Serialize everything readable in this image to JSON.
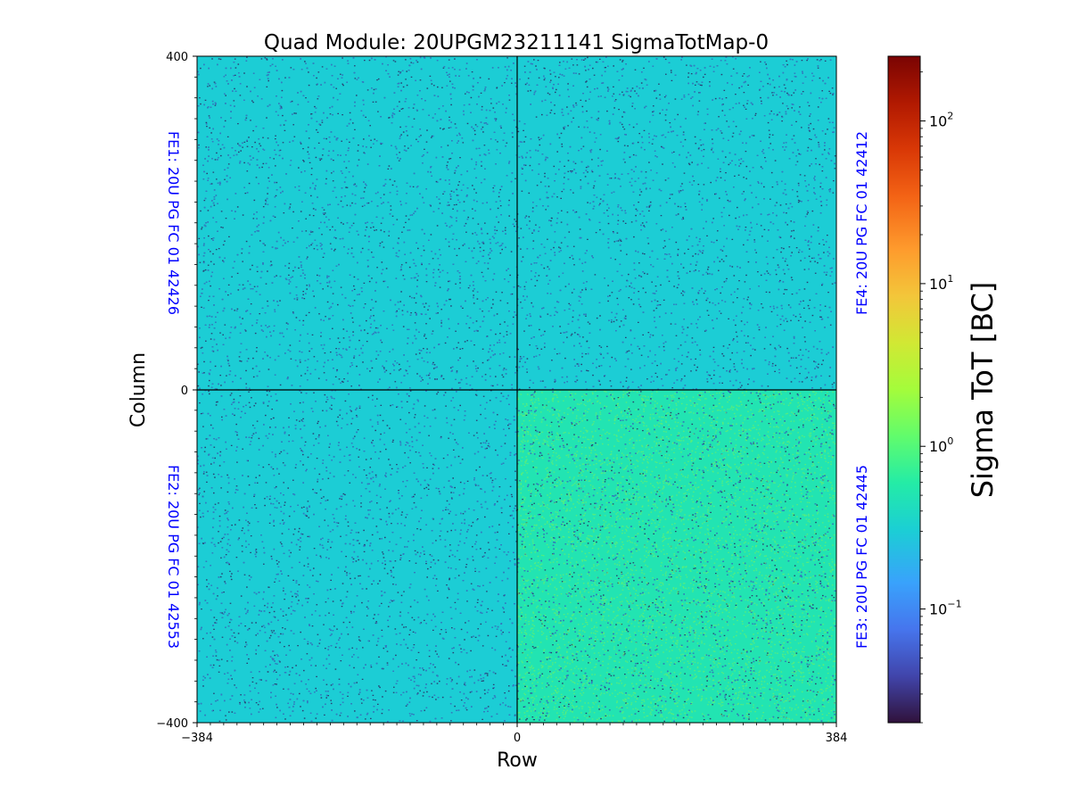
{
  "chart_data": {
    "type": "heatmap",
    "title": "Quad Module: 20UPGM23211141 SigmaTotMap-0",
    "xlabel": "Row",
    "ylabel": "Column",
    "xlim": [
      -384,
      384
    ],
    "ylim": [
      -400,
      400
    ],
    "x_ticks": [
      "−384",
      "0",
      "384"
    ],
    "y_ticks": [
      "400",
      "0",
      "−400"
    ],
    "colorbar": {
      "label": "Sigma ToT [BC]",
      "scale": "log",
      "range": [
        0.02,
        250
      ],
      "colormap": "turbo",
      "ticks": [
        {
          "base": "10",
          "exp": "−1",
          "value": 0.1
        },
        {
          "base": "10",
          "exp": "0",
          "value": 1
        },
        {
          "base": "10",
          "exp": "1",
          "value": 10
        },
        {
          "base": "10",
          "exp": "2",
          "value": 100
        }
      ]
    },
    "chips": [
      {
        "label": "FE1: 20U PG FC 01 42426",
        "quadrant": "top-left",
        "typical_value": 0.3
      },
      {
        "label": "FE4: 20U PG FC 01 42412",
        "quadrant": "top-right",
        "typical_value": 0.3
      },
      {
        "label": "FE2: 20U PG FC 01 42553",
        "quadrant": "bottom-left",
        "typical_value": 0.3
      },
      {
        "label": "FE3: 20U PG FC 01 42445",
        "quadrant": "bottom-right",
        "typical_value": 0.5
      }
    ],
    "grid": false,
    "colors": {
      "background_map": "#1fcdd0",
      "low": "#30123b",
      "high": "#7a0403",
      "chip_label": "#0000ff",
      "divider": "#000000"
    }
  }
}
